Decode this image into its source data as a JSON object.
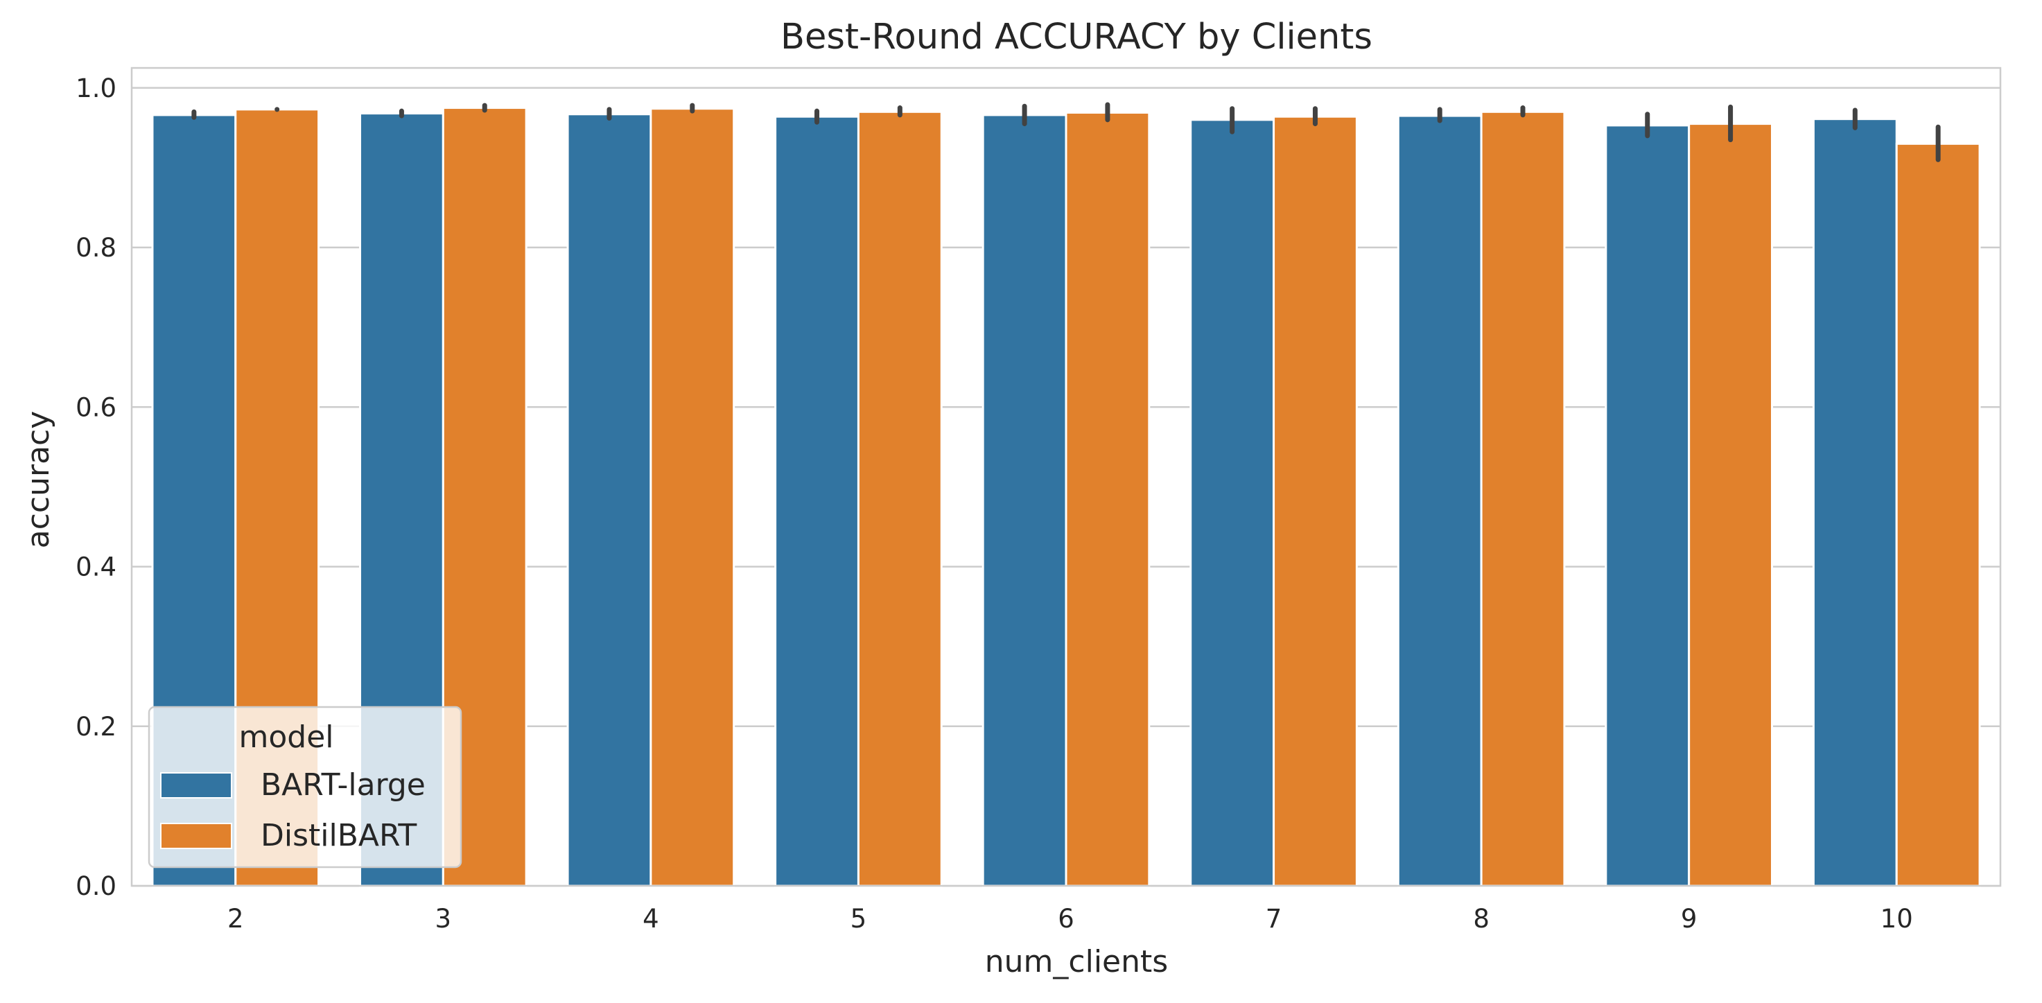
{
  "chart_data": {
    "type": "bar",
    "title": "Best-Round ACCURACY by Clients",
    "xlabel": "num_clients",
    "ylabel": "accuracy",
    "categories": [
      "2",
      "3",
      "4",
      "5",
      "6",
      "7",
      "8",
      "9",
      "10"
    ],
    "ylim": [
      0.0,
      1.025
    ],
    "yticks": [
      "0.0",
      "0.2",
      "0.4",
      "0.6",
      "0.8",
      "1.0"
    ],
    "grid": "horizontal",
    "legend": {
      "title": "model",
      "placement": "lower-left"
    },
    "series": [
      {
        "name": "BART-large",
        "color": "#3274a1",
        "values": [
          0.966,
          0.968,
          0.967,
          0.964,
          0.966,
          0.96,
          0.965,
          0.953,
          0.961
        ],
        "err_low": [
          0.963,
          0.965,
          0.962,
          0.957,
          0.955,
          0.945,
          0.959,
          0.94,
          0.95
        ],
        "err_high": [
          0.97,
          0.971,
          0.973,
          0.971,
          0.977,
          0.974,
          0.973,
          0.967,
          0.972
        ]
      },
      {
        "name": "DistilBART",
        "color": "#e1812c",
        "values": [
          0.973,
          0.975,
          0.974,
          0.97,
          0.969,
          0.964,
          0.97,
          0.955,
          0.93
        ],
        "err_low": [
          0.973,
          0.972,
          0.971,
          0.966,
          0.96,
          0.955,
          0.966,
          0.935,
          0.91
        ],
        "err_high": [
          0.973,
          0.978,
          0.978,
          0.975,
          0.979,
          0.974,
          0.975,
          0.976,
          0.951
        ]
      }
    ]
  }
}
